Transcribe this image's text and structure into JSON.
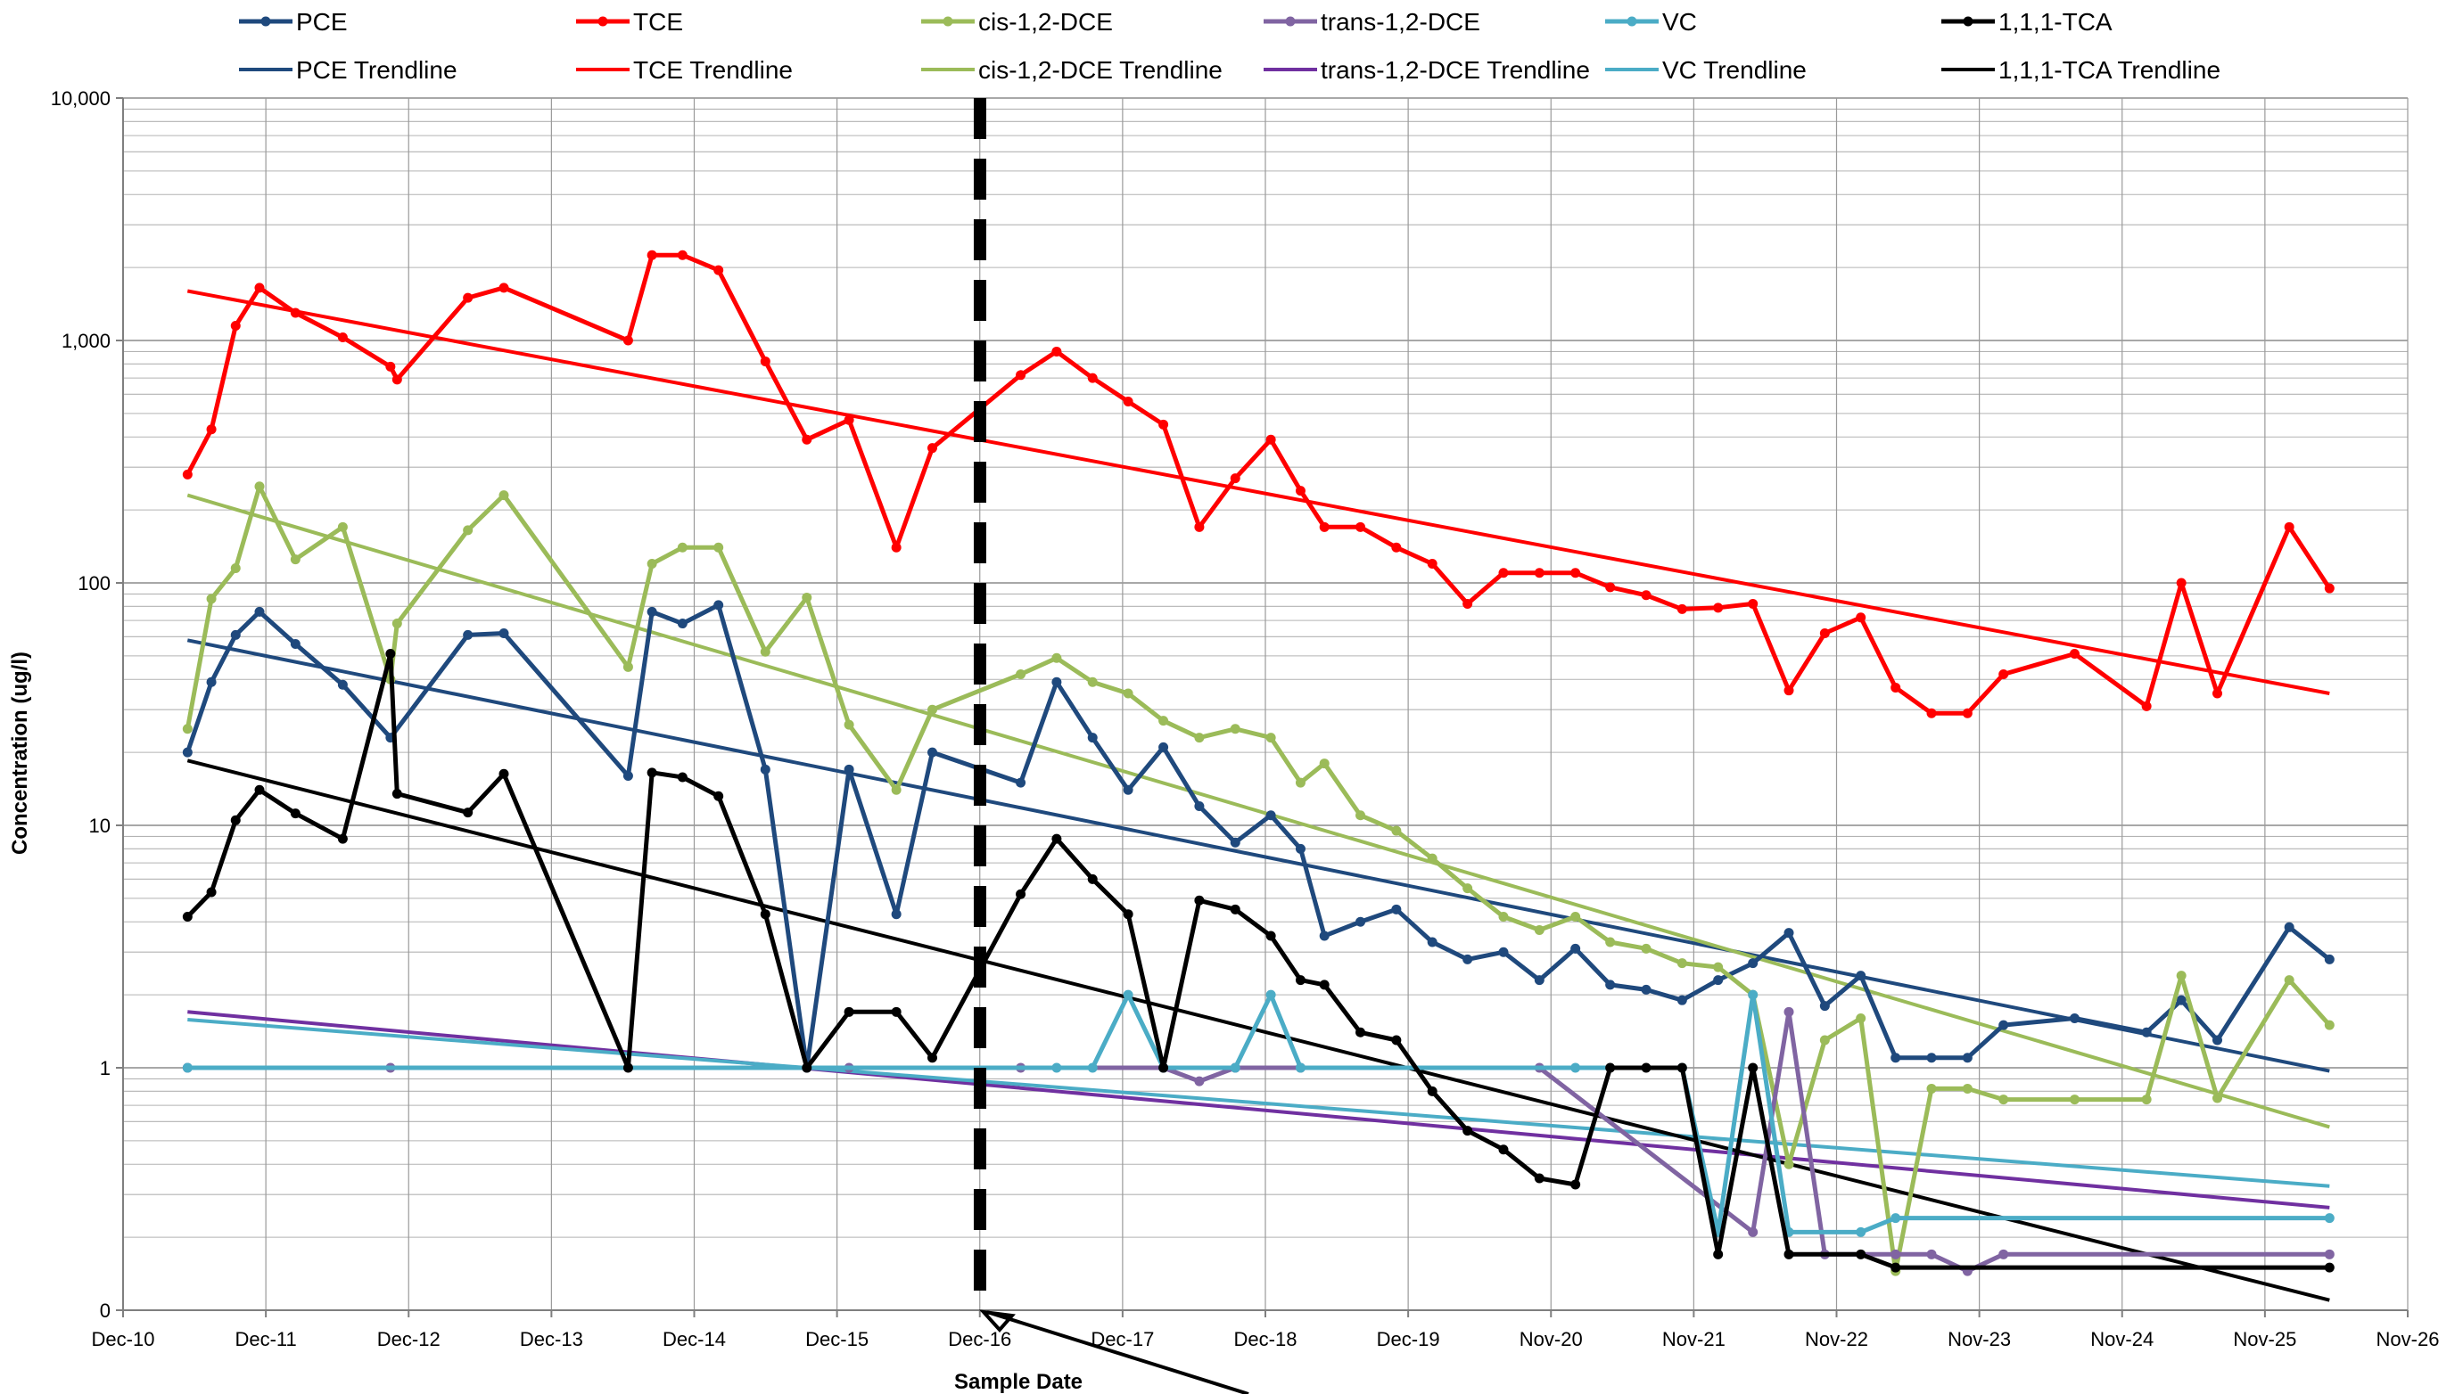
{
  "chart_data": {
    "type": "line",
    "title": "",
    "xlabel": "Sample Date",
    "ylabel": "Concentration (ug/l)",
    "y_scale": "log",
    "y_tick_labels": [
      "0",
      "1",
      "10",
      "100",
      "1,000",
      "10,000"
    ],
    "x_tick_labels": [
      "Dec-10",
      "Dec-11",
      "Dec-12",
      "Dec-13",
      "Dec-14",
      "Dec-15",
      "Dec-16",
      "Dec-17",
      "Dec-18",
      "Dec-19",
      "Nov-20",
      "Nov-21",
      "Nov-22",
      "Nov-23",
      "Nov-24",
      "Nov-25",
      "Nov-26"
    ],
    "grid": true,
    "legend_position": "top",
    "marker_line_date": "2016-12-01",
    "series": [
      {
        "name": "PCE",
        "color": "#1f497d",
        "kind": "data",
        "points": [
          [
            "2011-05-15",
            20
          ],
          [
            "2011-07-15",
            39
          ],
          [
            "2011-09-15",
            61
          ],
          [
            "2011-11-15",
            76
          ],
          [
            "2012-02-15",
            56
          ],
          [
            "2012-06-15",
            38
          ],
          [
            "2012-10-15",
            23
          ],
          [
            "2013-05-01",
            61
          ],
          [
            "2013-08-01",
            62
          ],
          [
            "2014-06-15",
            16
          ],
          [
            "2014-08-15",
            76
          ],
          [
            "2014-11-01",
            68
          ],
          [
            "2015-02-01",
            81
          ],
          [
            "2015-06-01",
            17
          ],
          [
            "2015-09-15",
            1
          ],
          [
            "2016-01-01",
            17
          ],
          [
            "2016-05-01",
            4.3
          ],
          [
            "2016-08-01",
            20
          ],
          [
            "2017-03-15",
            15
          ],
          [
            "2017-06-15",
            39
          ],
          [
            "2017-09-15",
            23
          ],
          [
            "2017-12-15",
            14
          ],
          [
            "2018-03-15",
            21
          ],
          [
            "2018-06-15",
            12
          ],
          [
            "2018-09-15",
            8.5
          ],
          [
            "2018-12-15",
            11
          ],
          [
            "2019-03-01",
            8
          ],
          [
            "2019-05-01",
            3.5
          ],
          [
            "2019-08-01",
            4
          ],
          [
            "2019-11-01",
            4.5
          ],
          [
            "2020-02-01",
            3.3
          ],
          [
            "2020-05-01",
            2.8
          ],
          [
            "2020-08-01",
            3
          ],
          [
            "2020-11-01",
            2.3
          ],
          [
            "2021-02-01",
            3.1
          ],
          [
            "2021-05-01",
            2.2
          ],
          [
            "2021-08-01",
            2.1
          ],
          [
            "2021-11-01",
            1.9
          ],
          [
            "2022-02-01",
            2.3
          ],
          [
            "2022-05-01",
            2.7
          ],
          [
            "2022-08-01",
            3.6
          ],
          [
            "2022-11-01",
            1.8
          ],
          [
            "2023-02-01",
            2.4
          ],
          [
            "2023-05-01",
            1.1
          ],
          [
            "2023-08-01",
            1.1
          ],
          [
            "2023-11-01",
            1.1
          ],
          [
            "2024-02-01",
            1.5
          ],
          [
            "2024-08-01",
            1.6
          ],
          [
            "2025-02-01",
            1.4
          ],
          [
            "2025-05-01",
            1.9
          ],
          [
            "2025-08-01",
            1.3
          ],
          [
            "2026-02-01",
            3.8
          ],
          [
            "2026-05-15",
            2.8
          ]
        ]
      },
      {
        "name": "TCE",
        "color": "#ff0000",
        "kind": "data",
        "points": [
          [
            "2011-05-15",
            280
          ],
          [
            "2011-07-15",
            430
          ],
          [
            "2011-09-15",
            1150
          ],
          [
            "2011-11-15",
            1650
          ],
          [
            "2012-02-15",
            1300
          ],
          [
            "2012-06-15",
            1030
          ],
          [
            "2012-10-15",
            780
          ],
          [
            "2012-11-01",
            690
          ],
          [
            "2013-05-01",
            1500
          ],
          [
            "2013-08-01",
            1650
          ],
          [
            "2014-06-15",
            1000
          ],
          [
            "2014-08-15",
            2250
          ],
          [
            "2014-11-01",
            2250
          ],
          [
            "2015-02-01",
            1950
          ],
          [
            "2015-06-01",
            820
          ],
          [
            "2015-09-15",
            390
          ],
          [
            "2016-01-01",
            470
          ],
          [
            "2016-05-01",
            140
          ],
          [
            "2016-08-01",
            360
          ],
          [
            "2017-03-15",
            720
          ],
          [
            "2017-06-15",
            900
          ],
          [
            "2017-09-15",
            700
          ],
          [
            "2017-12-15",
            560
          ],
          [
            "2018-03-15",
            450
          ],
          [
            "2018-06-15",
            170
          ],
          [
            "2018-09-15",
            270
          ],
          [
            "2018-12-15",
            390
          ],
          [
            "2019-03-01",
            240
          ],
          [
            "2019-05-01",
            170
          ],
          [
            "2019-08-01",
            170
          ],
          [
            "2019-11-01",
            140
          ],
          [
            "2020-02-01",
            120
          ],
          [
            "2020-05-01",
            82
          ],
          [
            "2020-08-01",
            110
          ],
          [
            "2020-11-01",
            110
          ],
          [
            "2021-02-01",
            110
          ],
          [
            "2021-05-01",
            96
          ],
          [
            "2021-08-01",
            89
          ],
          [
            "2021-11-01",
            78
          ],
          [
            "2022-02-01",
            79
          ],
          [
            "2022-05-01",
            82
          ],
          [
            "2022-08-01",
            36
          ],
          [
            "2022-11-01",
            62
          ],
          [
            "2023-02-01",
            72
          ],
          [
            "2023-05-01",
            37
          ],
          [
            "2023-08-01",
            29
          ],
          [
            "2023-11-01",
            29
          ],
          [
            "2024-02-01",
            42
          ],
          [
            "2024-08-01",
            51
          ],
          [
            "2025-02-01",
            31
          ],
          [
            "2025-05-01",
            100
          ],
          [
            "2025-08-01",
            35
          ],
          [
            "2026-02-01",
            170
          ],
          [
            "2026-05-15",
            95
          ]
        ]
      },
      {
        "name": "cis-1,2-DCE",
        "color": "#9bbb59",
        "kind": "data",
        "points": [
          [
            "2011-05-15",
            25
          ],
          [
            "2011-07-15",
            86
          ],
          [
            "2011-09-15",
            115
          ],
          [
            "2011-11-15",
            250
          ],
          [
            "2012-02-15",
            125
          ],
          [
            "2012-06-15",
            170
          ],
          [
            "2012-10-15",
            40
          ],
          [
            "2012-11-01",
            68
          ],
          [
            "2013-05-01",
            165
          ],
          [
            "2013-08-01",
            230
          ],
          [
            "2014-06-15",
            45
          ],
          [
            "2014-08-15",
            120
          ],
          [
            "2014-11-01",
            140
          ],
          [
            "2015-02-01",
            140
          ],
          [
            "2015-06-01",
            52
          ],
          [
            "2015-09-15",
            87
          ],
          [
            "2016-01-01",
            26
          ],
          [
            "2016-05-01",
            14
          ],
          [
            "2016-08-01",
            30
          ],
          [
            "2017-03-15",
            42
          ],
          [
            "2017-06-15",
            49
          ],
          [
            "2017-09-15",
            39
          ],
          [
            "2017-12-15",
            35
          ],
          [
            "2018-03-15",
            27
          ],
          [
            "2018-06-15",
            23
          ],
          [
            "2018-09-15",
            25
          ],
          [
            "2018-12-15",
            23
          ],
          [
            "2019-03-01",
            15
          ],
          [
            "2019-05-01",
            18
          ],
          [
            "2019-08-01",
            11
          ],
          [
            "2019-11-01",
            9.5
          ],
          [
            "2020-02-01",
            7.3
          ],
          [
            "2020-05-01",
            5.5
          ],
          [
            "2020-08-01",
            4.2
          ],
          [
            "2020-11-01",
            3.7
          ],
          [
            "2021-02-01",
            4.2
          ],
          [
            "2021-05-01",
            3.3
          ],
          [
            "2021-08-01",
            3.1
          ],
          [
            "2021-11-01",
            2.7
          ],
          [
            "2022-02-01",
            2.6
          ],
          [
            "2022-05-01",
            2
          ],
          [
            "2022-08-01",
            0.4
          ],
          [
            "2022-11-01",
            1.3
          ],
          [
            "2023-02-01",
            1.6
          ],
          [
            "2023-05-01",
            0.145
          ],
          [
            "2023-08-01",
            0.82
          ],
          [
            "2023-11-01",
            0.82
          ],
          [
            "2024-02-01",
            0.74
          ],
          [
            "2024-08-01",
            0.74
          ],
          [
            "2025-02-01",
            0.74
          ],
          [
            "2025-05-01",
            2.4
          ],
          [
            "2025-08-01",
            0.75
          ],
          [
            "2026-02-01",
            2.3
          ],
          [
            "2026-05-15",
            1.5
          ]
        ]
      },
      {
        "name": "trans-1,2-DCE",
        "color": "#8064a2",
        "kind": "data",
        "points": [
          [
            "2011-05-15",
            1
          ],
          [
            "2012-10-15",
            1
          ],
          [
            "2016-01-01",
            1
          ],
          [
            "2017-03-15",
            1
          ],
          [
            "2018-03-15",
            1
          ],
          [
            "2018-06-15",
            0.88
          ],
          [
            "2018-09-15",
            1
          ],
          [
            "2019-03-01",
            1
          ],
          [
            "2020-11-01",
            1
          ],
          [
            "2022-05-01",
            0.21
          ],
          [
            "2022-08-01",
            1.7
          ],
          [
            "2022-11-01",
            0.17
          ],
          [
            "2023-05-01",
            0.17
          ],
          [
            "2023-08-01",
            0.17
          ],
          [
            "2023-11-01",
            0.145
          ],
          [
            "2024-02-01",
            0.17
          ],
          [
            "2026-05-15",
            0.17
          ]
        ]
      },
      {
        "name": "VC",
        "color": "#4bacc6",
        "kind": "data",
        "points": [
          [
            "2011-05-15",
            1
          ],
          [
            "2017-06-15",
            1
          ],
          [
            "2017-09-15",
            1
          ],
          [
            "2017-12-15",
            2
          ],
          [
            "2018-03-15",
            1
          ],
          [
            "2018-09-15",
            1
          ],
          [
            "2018-12-15",
            2
          ],
          [
            "2019-03-01",
            1
          ],
          [
            "2021-02-01",
            1
          ],
          [
            "2021-11-01",
            1
          ],
          [
            "2022-02-01",
            0.21
          ],
          [
            "2022-05-01",
            2
          ],
          [
            "2022-08-01",
            0.21
          ],
          [
            "2023-02-01",
            0.21
          ],
          [
            "2023-05-01",
            0.24
          ],
          [
            "2026-05-15",
            0.24
          ]
        ]
      },
      {
        "name": "1,1,1-TCA",
        "color": "#000000",
        "kind": "data",
        "points": [
          [
            "2011-05-15",
            4.2
          ],
          [
            "2011-07-15",
            5.3
          ],
          [
            "2011-09-15",
            10.5
          ],
          [
            "2011-11-15",
            14
          ],
          [
            "2012-02-15",
            11.2
          ],
          [
            "2012-06-15",
            8.8
          ],
          [
            "2012-10-15",
            51
          ],
          [
            "2012-11-01",
            13.5
          ],
          [
            "2013-05-01",
            11.3
          ],
          [
            "2013-08-01",
            16.3
          ],
          [
            "2014-06-15",
            1
          ],
          [
            "2014-08-15",
            16.5
          ],
          [
            "2014-11-01",
            15.8
          ],
          [
            "2015-02-01",
            13.2
          ],
          [
            "2015-06-01",
            4.3
          ],
          [
            "2015-09-15",
            1
          ],
          [
            "2016-01-01",
            1.7
          ],
          [
            "2016-05-01",
            1.7
          ],
          [
            "2016-08-01",
            1.1
          ],
          [
            "2017-03-15",
            5.2
          ],
          [
            "2017-06-15",
            8.8
          ],
          [
            "2017-09-15",
            6
          ],
          [
            "2017-12-15",
            4.3
          ],
          [
            "2018-03-15",
            1
          ],
          [
            "2018-06-15",
            4.9
          ],
          [
            "2018-09-15",
            4.5
          ],
          [
            "2018-12-15",
            3.5
          ],
          [
            "2019-03-01",
            2.3
          ],
          [
            "2019-05-01",
            2.2
          ],
          [
            "2019-08-01",
            1.4
          ],
          [
            "2019-11-01",
            1.3
          ],
          [
            "2020-02-01",
            0.8
          ],
          [
            "2020-05-01",
            0.55
          ],
          [
            "2020-08-01",
            0.46
          ],
          [
            "2020-11-01",
            0.35
          ],
          [
            "2021-02-01",
            0.33
          ],
          [
            "2021-05-01",
            1
          ],
          [
            "2021-08-01",
            1
          ],
          [
            "2021-11-01",
            1
          ],
          [
            "2022-02-01",
            0.17
          ],
          [
            "2022-05-01",
            1
          ],
          [
            "2022-08-01",
            0.17
          ],
          [
            "2023-02-01",
            0.17
          ],
          [
            "2023-05-01",
            0.15
          ],
          [
            "2026-05-15",
            0.15
          ]
        ]
      },
      {
        "name": "PCE Trendline",
        "color": "#1f497d",
        "kind": "trend",
        "points": [
          [
            "2011-05-15",
            58
          ],
          [
            "2026-05-15",
            0.97
          ]
        ]
      },
      {
        "name": "TCE Trendline",
        "color": "#ff0000",
        "kind": "trend",
        "points": [
          [
            "2011-05-15",
            1600
          ],
          [
            "2026-05-15",
            35
          ]
        ]
      },
      {
        "name": "cis-1,2-DCE Trendline",
        "color": "#9bbb59",
        "kind": "trend",
        "points": [
          [
            "2011-05-15",
            230
          ],
          [
            "2026-05-15",
            0.57
          ]
        ]
      },
      {
        "name": "trans-1,2-DCE Trendline",
        "color": "#7030a0",
        "kind": "trend",
        "points": [
          [
            "2011-05-15",
            1.7
          ],
          [
            "2026-05-15",
            0.265
          ]
        ]
      },
      {
        "name": "VC Trendline",
        "color": "#4bacc6",
        "kind": "trend",
        "points": [
          [
            "2011-05-15",
            1.58
          ],
          [
            "2026-05-15",
            0.325
          ]
        ]
      },
      {
        "name": "1,1,1-TCA Trendline",
        "color": "#000000",
        "kind": "trend",
        "points": [
          [
            "2011-05-15",
            18.5
          ],
          [
            "2026-05-15",
            0.11
          ]
        ]
      }
    ]
  }
}
